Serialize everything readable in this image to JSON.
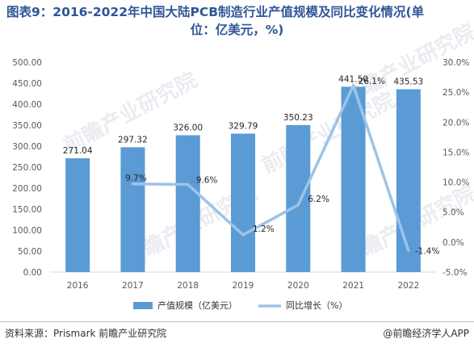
{
  "title": {
    "line1": "图表9：2016-2022年中国大陆PCB制造行业产值规模及同比变化情况(单",
    "line2": "位：亿美元，%)"
  },
  "source": "资料来源：Prismark 前瞻产业研究院",
  "brand": "@前瞻经济学人APP",
  "watermark": "前瞻产业研究院",
  "colors": {
    "bar": "#5b9bd5",
    "line": "#9dc3e6",
    "title": "#2f5597"
  },
  "chart_data": {
    "type": "bar+line",
    "categories": [
      "2016",
      "2017",
      "2018",
      "2019",
      "2020",
      "2021",
      "2022"
    ],
    "series": [
      {
        "name": "产值规模（亿美元）",
        "type": "bar",
        "axis": "left",
        "values": [
          271.04,
          297.32,
          326.0,
          329.79,
          350.23,
          441.5,
          435.53
        ],
        "labels": [
          "271.04",
          "297.32",
          "326.00",
          "329.79",
          "350.23",
          "441.50",
          "435.53"
        ]
      },
      {
        "name": "同比增长（%）",
        "type": "line",
        "axis": "right",
        "values": [
          null,
          9.7,
          9.6,
          1.2,
          6.2,
          26.1,
          -1.4
        ],
        "labels": [
          "",
          "9.7%",
          "9.6%",
          "1.2%",
          "6.2%",
          "26.1%",
          "-1.4%"
        ]
      }
    ],
    "y_left": {
      "min": 0,
      "max": 500,
      "ticks": [
        "0.00",
        "50.00",
        "100.00",
        "150.00",
        "200.00",
        "250.00",
        "300.00",
        "350.00",
        "400.00",
        "450.00",
        "500.00"
      ]
    },
    "y_right": {
      "min": -5,
      "max": 30,
      "ticks": [
        "-5.0%",
        "0.0%",
        "5.0%",
        "10.0%",
        "15.0%",
        "20.0%",
        "25.0%",
        "30.0%"
      ]
    },
    "grid": false,
    "legend": "bottom"
  }
}
